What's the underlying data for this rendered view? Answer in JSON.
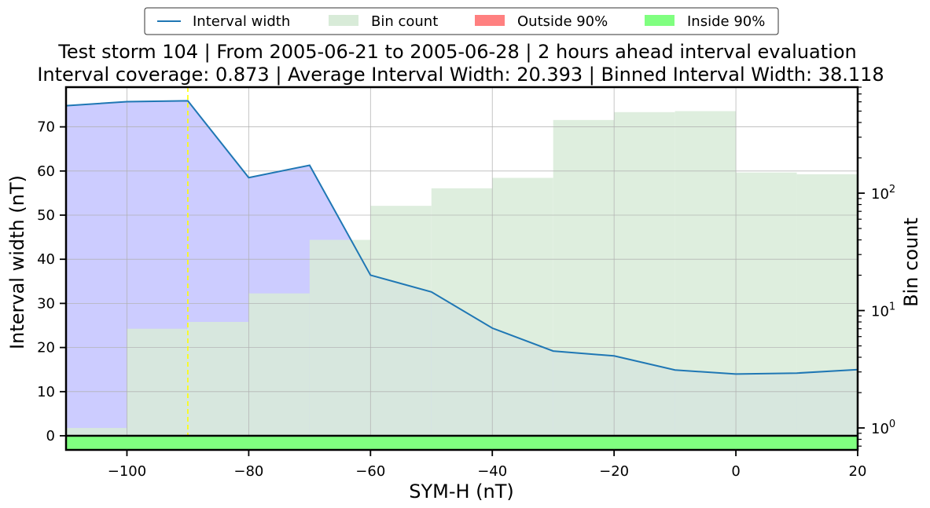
{
  "chart_data": {
    "type": "line",
    "title": "Test storm 104 | From 2005-06-21 to 2005-06-28 | 2 hours ahead interval evaluation",
    "subtitle": "Interval coverage: 0.873 | Average Interval Width: 20.393 | Binned Interval Width: 38.118",
    "xlabel": "SYM-H (nT)",
    "ylabel": "Interval width (nT)",
    "y2label": "Bin count",
    "xlim": [
      -110,
      20
    ],
    "ylim": [
      -3.2,
      79
    ],
    "y2_scale": "log",
    "y2lim": [
      0.65,
      800
    ],
    "grid": true,
    "legend_position": "top-center",
    "x_ticks": [
      -100,
      -80,
      -60,
      -40,
      -20,
      0,
      20
    ],
    "x_tick_labels": [
      "−100",
      "−80",
      "−60",
      "−40",
      "−20",
      "0",
      "20"
    ],
    "y_ticks": [
      0,
      10,
      20,
      30,
      40,
      50,
      60,
      70
    ],
    "y_tick_labels": [
      "0",
      "10",
      "20",
      "30",
      "40",
      "50",
      "60",
      "70"
    ],
    "y2_major_ticks": [
      1,
      10,
      100
    ],
    "y2_tick_labels": [
      {
        "base": "10",
        "exp": "0"
      },
      {
        "base": "10",
        "exp": "1"
      },
      {
        "base": "10",
        "exp": "2"
      }
    ],
    "legend": [
      {
        "label": "Interval width",
        "kind": "line",
        "color": "#1f77b4"
      },
      {
        "label": "Bin count",
        "kind": "patch",
        "color": "#d8ebd8"
      },
      {
        "label": "Outside 90%",
        "kind": "patch",
        "color": "#ff8080"
      },
      {
        "label": "Inside 90%",
        "kind": "patch",
        "color": "#80ff80"
      }
    ],
    "interval_width": {
      "name": "Interval width",
      "color": "#1f77b4",
      "x": [
        -110,
        -100,
        -90,
        -80,
        -70,
        -60,
        -50,
        -40,
        -30,
        -20,
        -10,
        0,
        10,
        20
      ],
      "y": [
        74.8,
        75.7,
        75.9,
        58.5,
        61.3,
        36.4,
        32.6,
        24.4,
        19.2,
        18.1,
        14.9,
        14.0,
        14.2,
        15.0
      ]
    },
    "bin_count": {
      "name": "Bin count",
      "color": "#d8ebd8",
      "bin_edges": [
        -110,
        -100,
        -90,
        -80,
        -70,
        -60,
        -50,
        -40,
        -30,
        -20,
        -10,
        0,
        10,
        20
      ],
      "counts": [
        1,
        7,
        8,
        14,
        40,
        78,
        110,
        135,
        420,
        490,
        500,
        150,
        145
      ]
    },
    "coverage_fill": {
      "color": "#ccccff"
    },
    "reference_line": {
      "x": -90,
      "color": "#ffff00",
      "style": "dashed"
    },
    "coverage_bar": {
      "color": "#80ff80",
      "label": "Inside 90%"
    }
  }
}
